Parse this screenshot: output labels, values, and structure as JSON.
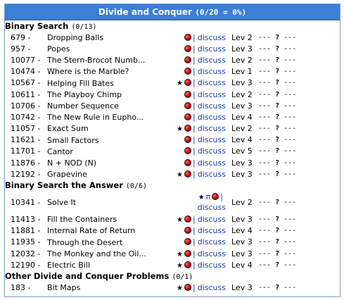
{
  "header": {
    "title": "Divide and Conquer",
    "stats": "(0/20 = 0%)"
  },
  "colors": {
    "titlebar": "#3b7fd6",
    "link": "#1a3ea8",
    "ball": "#b00000"
  },
  "labels": {
    "discuss": "discuss",
    "separator": "|",
    "star": "★",
    "pi": "π",
    "dash": "---",
    "question": "?"
  },
  "sections": [
    {
      "name": "Binary Search",
      "count": "(0/13)",
      "problems": [
        {
          "num": "679 -",
          "title": "Dropping Balls",
          "star": false,
          "pi": false,
          "level": "Lev 2"
        },
        {
          "num": "957 -",
          "title": "Popes",
          "star": false,
          "pi": false,
          "level": "Lev 3"
        },
        {
          "num": "10077 -",
          "title": "The Stern-Brocot Numb...",
          "star": false,
          "pi": false,
          "level": "Lev 2"
        },
        {
          "num": "10474 -",
          "title": "Where is the Marble?",
          "star": false,
          "pi": false,
          "level": "Lev 1"
        },
        {
          "num": "10567 -",
          "title": "Helping Fill Bates",
          "star": true,
          "pi": false,
          "level": "Lev 3"
        },
        {
          "num": "10611 -",
          "title": "The Playboy Chimp",
          "star": false,
          "pi": false,
          "level": "Lev 2"
        },
        {
          "num": "10706 -",
          "title": "Number Sequence",
          "star": false,
          "pi": false,
          "level": "Lev 3"
        },
        {
          "num": "10742 -",
          "title": "The New Rule in Eupho...",
          "star": false,
          "pi": false,
          "level": "Lev 4"
        },
        {
          "num": "11057 -",
          "title": "Exact Sum",
          "star": true,
          "pi": false,
          "level": "Lev 2"
        },
        {
          "num": "11621 -",
          "title": "Small Factors",
          "star": false,
          "pi": false,
          "level": "Lev 4"
        },
        {
          "num": "11701 -",
          "title": "Cantor",
          "star": false,
          "pi": false,
          "level": "Lev 5"
        },
        {
          "num": "11876 -",
          "title": "N + NOD (N)",
          "star": false,
          "pi": false,
          "level": "Lev 3"
        },
        {
          "num": "12192 -",
          "title": "Grapevine",
          "star": true,
          "pi": false,
          "level": "Lev 3"
        }
      ]
    },
    {
      "name": "Binary Search the Answer",
      "count": "(0/6)",
      "problems": [
        {
          "num": "10341 -",
          "title": "Solve It",
          "star": true,
          "pi": true,
          "level": "Lev 2",
          "tall": true
        },
        {
          "num": "11413 -",
          "title": "Fill the Containers",
          "star": true,
          "pi": false,
          "level": "Lev 3"
        },
        {
          "num": "11881 -",
          "title": "Internal Rate of Return",
          "star": false,
          "pi": false,
          "level": "Lev 4"
        },
        {
          "num": "11935 -",
          "title": "Through the Desert",
          "star": false,
          "pi": false,
          "level": "Lev 3"
        },
        {
          "num": "12032 -",
          "title": "The Monkey and the Oil...",
          "star": true,
          "pi": false,
          "level": "Lev 3"
        },
        {
          "num": "12190 -",
          "title": "Electric Bill",
          "star": true,
          "pi": false,
          "level": "Lev 4"
        }
      ]
    },
    {
      "name": "Other Divide and Conquer Problems",
      "count": "(0/1)",
      "problems": [
        {
          "num": "183 -",
          "title": "Bit Maps",
          "star": true,
          "pi": false,
          "level": "Lev 3"
        }
      ]
    }
  ]
}
